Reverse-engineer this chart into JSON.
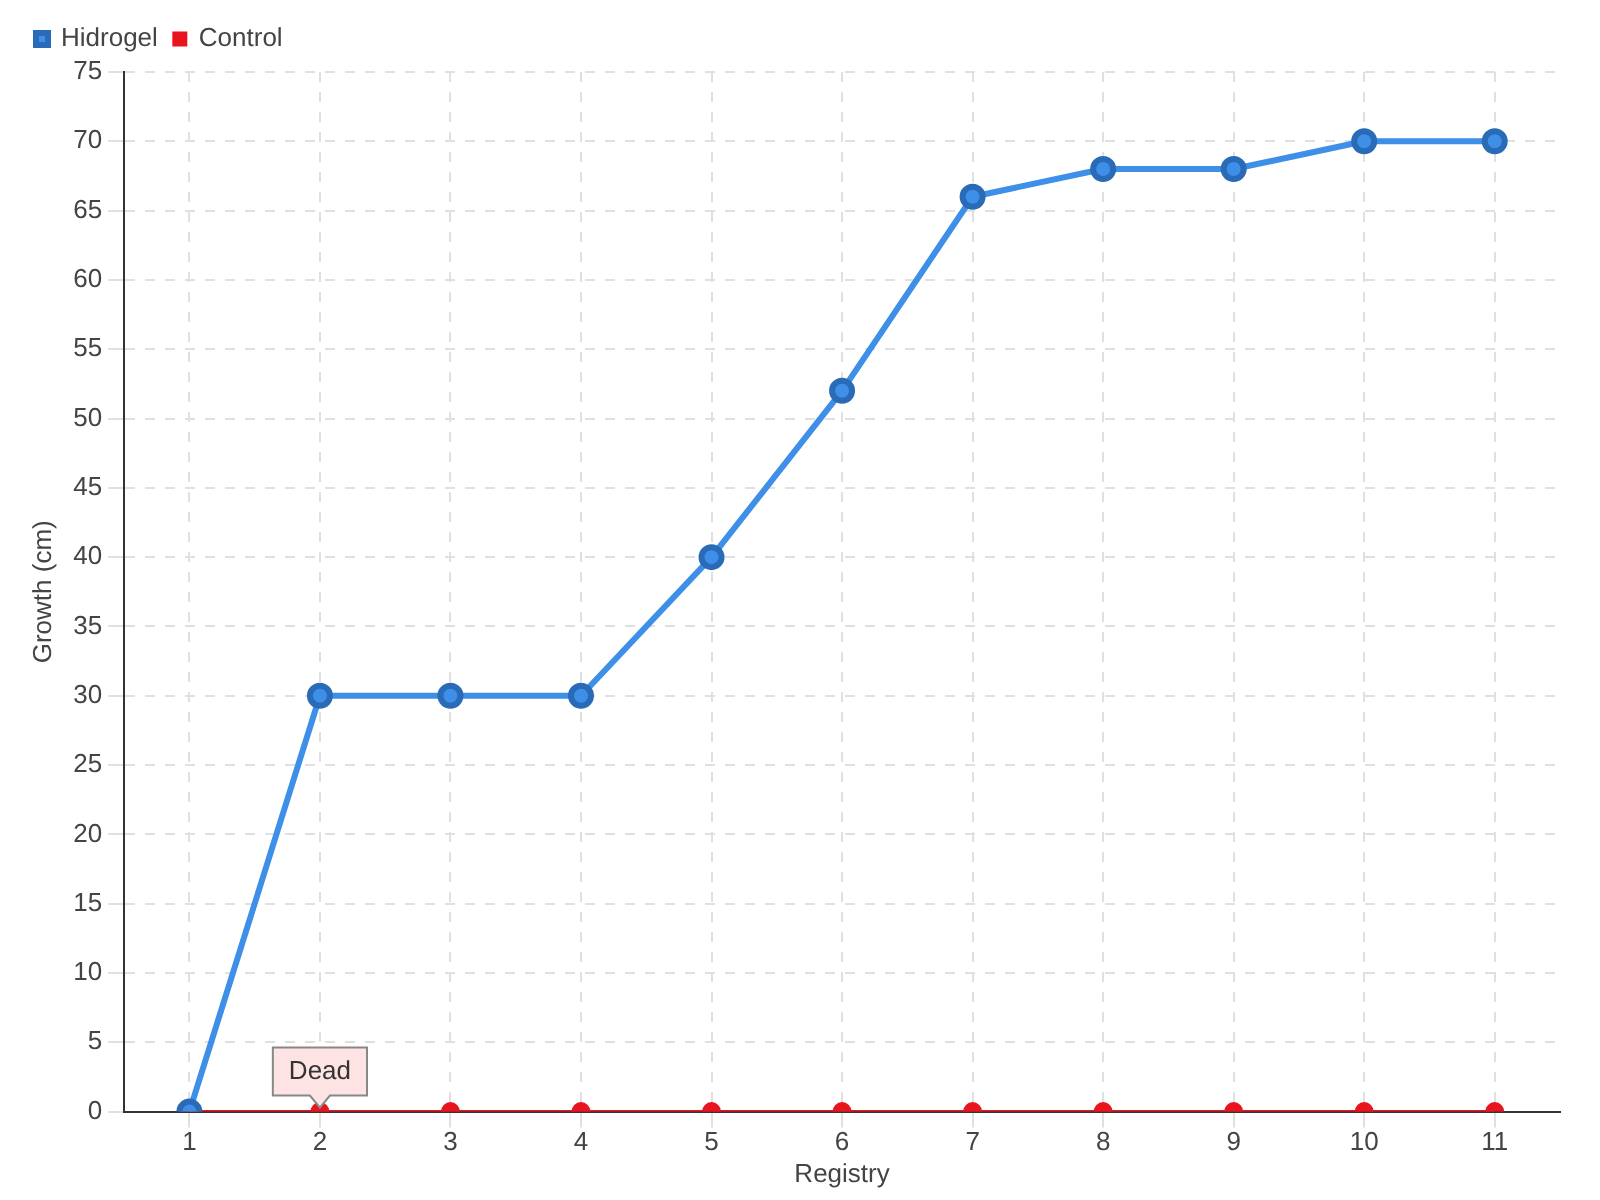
{
  "chart_data": {
    "type": "line",
    "xlabel": "Registry",
    "ylabel": "Growth (cm)",
    "categories": [
      "1",
      "2",
      "3",
      "4",
      "5",
      "6",
      "7",
      "8",
      "9",
      "10",
      "11"
    ],
    "series": [
      {
        "name": "Hidrogel",
        "color": "#3d8fe8",
        "values": [
          0,
          30,
          30,
          30,
          40,
          52,
          66,
          68,
          68,
          70,
          70
        ]
      },
      {
        "name": "Control",
        "color": "#e8141e",
        "values": [
          0,
          0,
          0,
          0,
          0,
          0,
          0,
          0,
          0,
          0,
          0
        ]
      }
    ],
    "ylim": [
      0,
      75
    ],
    "yticks": [
      0,
      5,
      10,
      15,
      20,
      25,
      30,
      35,
      40,
      45,
      50,
      55,
      60,
      65,
      70,
      75
    ],
    "grid": true,
    "legend": "top left",
    "marker": "circle",
    "line_style": "solid",
    "annotations": [
      {
        "text": "Dead",
        "x": "2",
        "y": 0
      }
    ]
  }
}
